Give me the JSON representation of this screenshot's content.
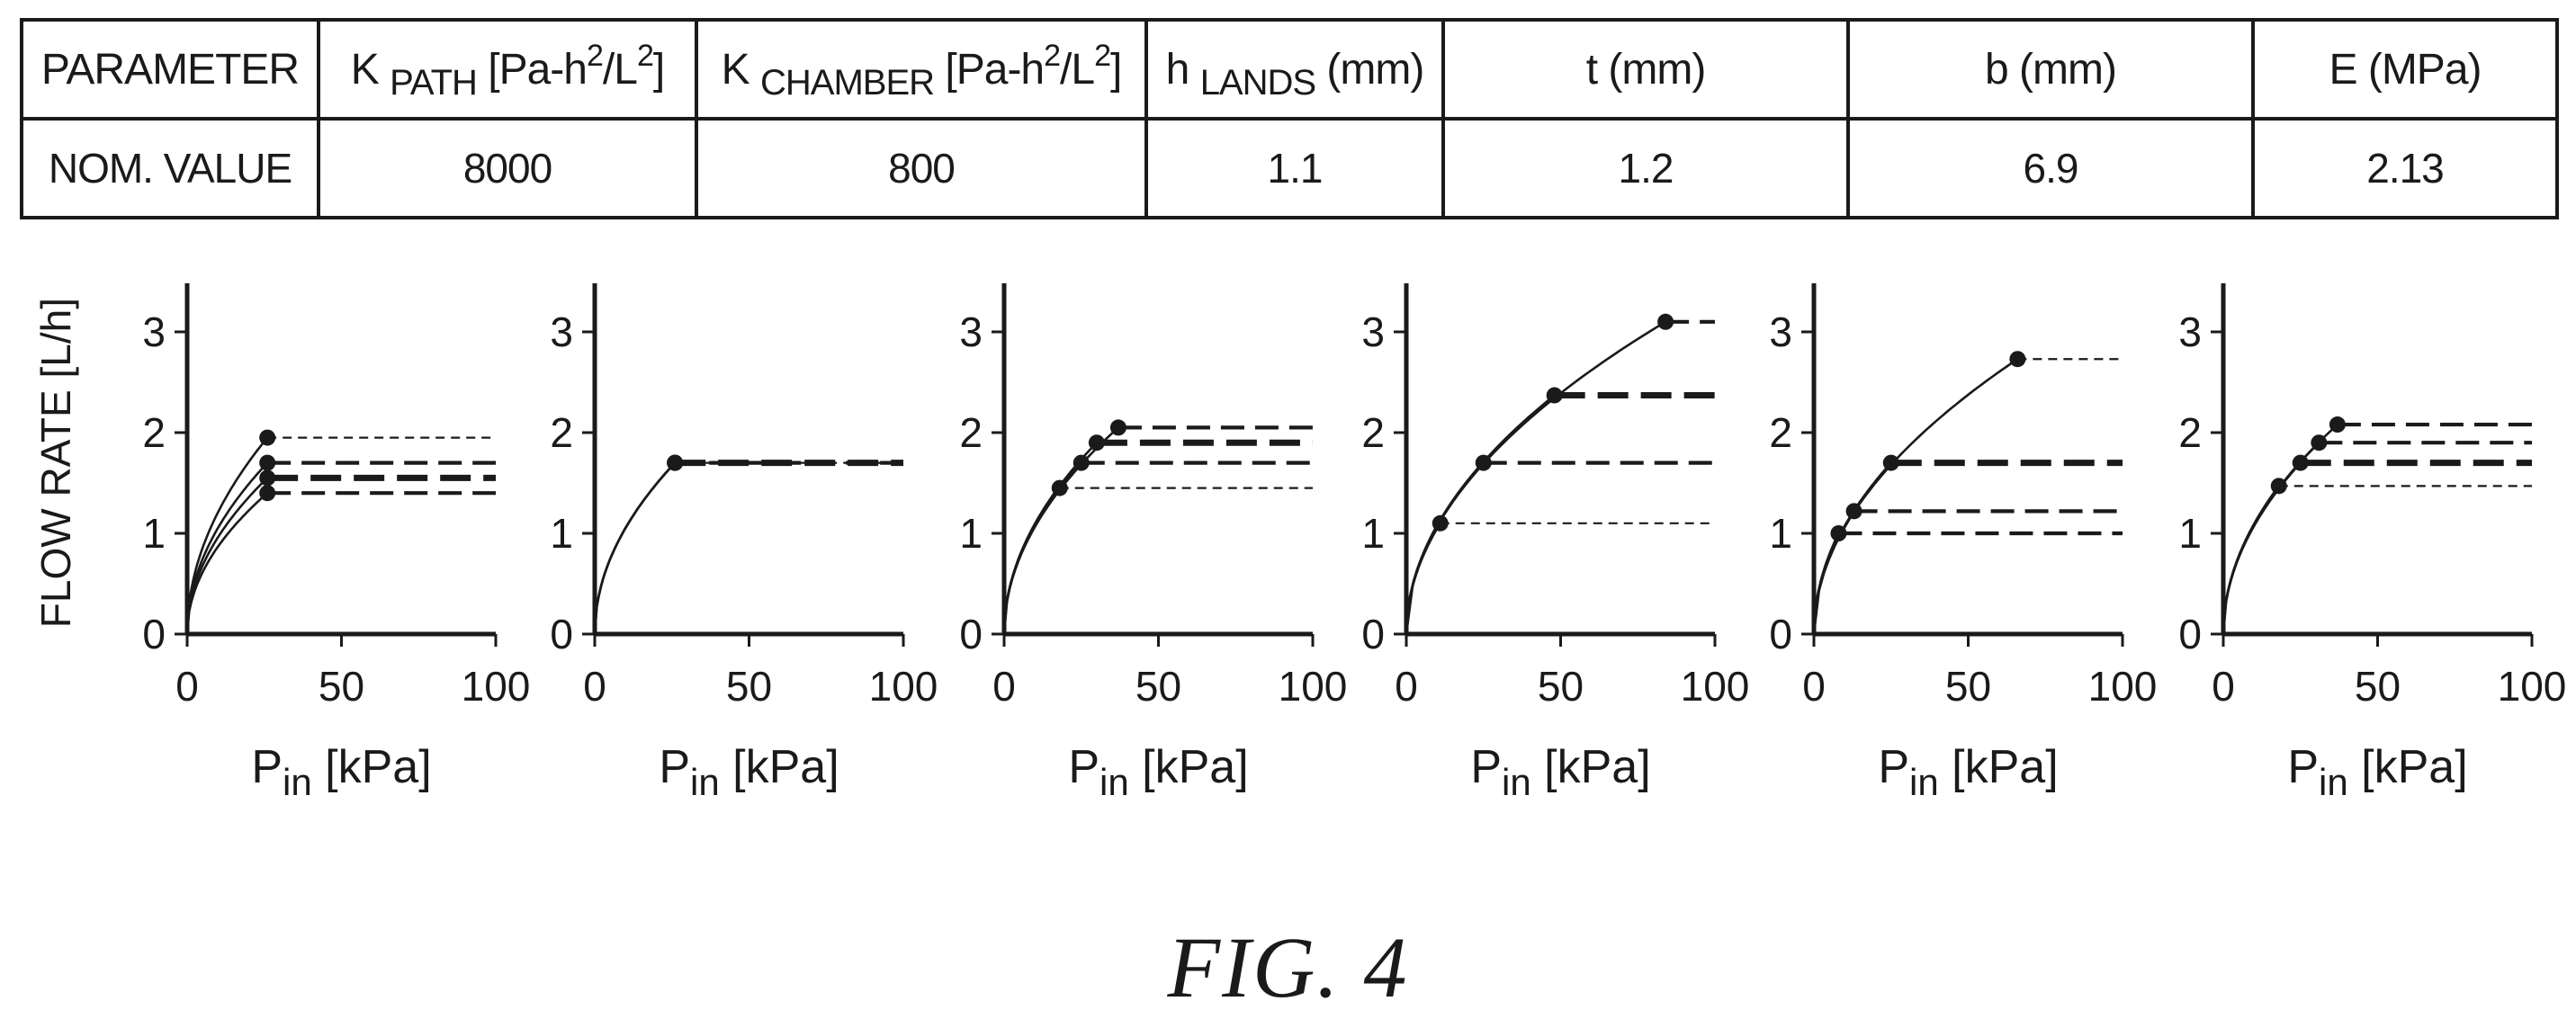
{
  "table": {
    "header": {
      "parameter": "PARAMETER",
      "k_path": {
        "sym": "K",
        "sub": "PATH",
        "u1": "[Pa-h",
        "sup1": "2",
        "u2": "/L",
        "sup2": "2",
        "u3": "]"
      },
      "k_chamber": {
        "sym": "K",
        "sub": "CHAMBER",
        "u1": "[Pa-h",
        "sup1": "2",
        "u2": "/L",
        "sup2": "2",
        "u3": "]"
      },
      "h_lands": {
        "sym": "h",
        "sub": "LANDS",
        "unit": "(mm)"
      },
      "t": "t (mm)",
      "b": "b (mm)",
      "e": "E (MPa)"
    },
    "row": {
      "label": "NOM. VALUE",
      "k_path": "8000",
      "k_chamber": "800",
      "h_lands": "1.1",
      "t": "1.2",
      "b": "6.9",
      "e": "2.13"
    }
  },
  "figure_label": "FIG. 4",
  "chart_data": [
    {
      "type": "line",
      "ylabel": "FLOW RATE [L/h]",
      "xlabel_main": "P",
      "xlabel_sub": "in",
      "xlabel_unit": " [kPa]",
      "xlim": [
        0,
        100
      ],
      "ylim": [
        0,
        3.4
      ],
      "xticks": [
        "0",
        "50",
        "100"
      ],
      "yticks": [
        "0",
        "1",
        "2",
        "3"
      ],
      "series": [
        {
          "sat_x": 26,
          "sat_y": 1.95,
          "style": "thin"
        },
        {
          "sat_x": 26,
          "sat_y": 1.7,
          "style": "medium"
        },
        {
          "sat_x": 26,
          "sat_y": 1.55,
          "style": "thick"
        },
        {
          "sat_x": 26,
          "sat_y": 1.4,
          "style": "medium"
        }
      ]
    },
    {
      "type": "line",
      "ylabel": "",
      "xlabel_main": "P",
      "xlabel_sub": "in",
      "xlabel_unit": " [kPa]",
      "xlim": [
        0,
        100
      ],
      "ylim": [
        0,
        3.4
      ],
      "xticks": [
        "0",
        "50",
        "100"
      ],
      "yticks": [
        "0",
        "1",
        "2",
        "3"
      ],
      "series": [
        {
          "sat_x": 26,
          "sat_y": 1.7,
          "style": "thin"
        },
        {
          "sat_x": 26,
          "sat_y": 1.7,
          "style": "medium"
        },
        {
          "sat_x": 26,
          "sat_y": 1.7,
          "style": "thick"
        }
      ]
    },
    {
      "type": "line",
      "ylabel": "",
      "xlabel_main": "P",
      "xlabel_sub": "in",
      "xlabel_unit": " [kPa]",
      "xlim": [
        0,
        100
      ],
      "ylim": [
        0,
        3.4
      ],
      "xticks": [
        "0",
        "50",
        "100"
      ],
      "yticks": [
        "0",
        "1",
        "2",
        "3"
      ],
      "series": [
        {
          "sat_x": 18,
          "sat_y": 1.45,
          "style": "thin"
        },
        {
          "sat_x": 25,
          "sat_y": 1.7,
          "style": "medium"
        },
        {
          "sat_x": 30,
          "sat_y": 1.9,
          "style": "thick"
        },
        {
          "sat_x": 37,
          "sat_y": 2.05,
          "style": "medium"
        }
      ]
    },
    {
      "type": "line",
      "ylabel": "",
      "xlabel_main": "P",
      "xlabel_sub": "in",
      "xlabel_unit": " [kPa]",
      "xlim": [
        0,
        100
      ],
      "ylim": [
        0,
        3.4
      ],
      "xticks": [
        "0",
        "50",
        "100"
      ],
      "yticks": [
        "0",
        "1",
        "2",
        "3"
      ],
      "series": [
        {
          "sat_x": 11,
          "sat_y": 1.1,
          "style": "thin"
        },
        {
          "sat_x": 25,
          "sat_y": 1.7,
          "style": "medium"
        },
        {
          "sat_x": 48,
          "sat_y": 2.37,
          "style": "thick"
        },
        {
          "sat_x": 84,
          "sat_y": 3.1,
          "style": "medium"
        }
      ]
    },
    {
      "type": "line",
      "ylabel": "",
      "xlabel_main": "P",
      "xlabel_sub": "in",
      "xlabel_unit": " [kPa]",
      "xlim": [
        0,
        100
      ],
      "ylim": [
        0,
        3.4
      ],
      "xticks": [
        "0",
        "50",
        "100"
      ],
      "yticks": [
        "0",
        "1",
        "2",
        "3"
      ],
      "series": [
        {
          "sat_x": 8,
          "sat_y": 1.0,
          "style": "medium"
        },
        {
          "sat_x": 13,
          "sat_y": 1.22,
          "style": "medium"
        },
        {
          "sat_x": 25,
          "sat_y": 1.7,
          "style": "thick"
        },
        {
          "sat_x": 66,
          "sat_y": 2.73,
          "style": "thin"
        }
      ]
    },
    {
      "type": "line",
      "ylabel": "",
      "xlabel_main": "P",
      "xlabel_sub": "in",
      "xlabel_unit": " [kPa]",
      "xlim": [
        0,
        100
      ],
      "ylim": [
        0,
        3.4
      ],
      "xticks": [
        "0",
        "50",
        "100"
      ],
      "yticks": [
        "0",
        "1",
        "2",
        "3"
      ],
      "series": [
        {
          "sat_x": 18,
          "sat_y": 1.47,
          "style": "thin"
        },
        {
          "sat_x": 25,
          "sat_y": 1.7,
          "style": "thick"
        },
        {
          "sat_x": 31,
          "sat_y": 1.9,
          "style": "medium"
        },
        {
          "sat_x": 37,
          "sat_y": 2.08,
          "style": "medium"
        }
      ]
    }
  ]
}
